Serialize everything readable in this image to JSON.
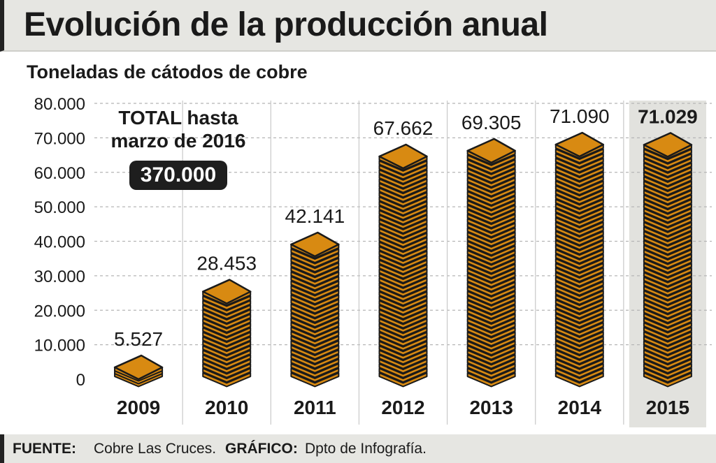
{
  "chart_data": {
    "type": "bar",
    "title": "Evolución de la producción anual",
    "subtitle": "Toneladas de cátodos de cobre",
    "categories": [
      "2009",
      "2010",
      "2011",
      "2012",
      "2013",
      "2014",
      "2015"
    ],
    "values": [
      5527,
      28453,
      42141,
      67662,
      69305,
      71090,
      71029
    ],
    "value_labels": [
      "5.527",
      "28.453",
      "42.141",
      "67.662",
      "69.305",
      "71.090",
      "71.029"
    ],
    "highlight_category": "2015",
    "ylim": [
      0,
      80000
    ],
    "yticks": [
      0,
      10000,
      20000,
      30000,
      40000,
      50000,
      60000,
      70000,
      80000
    ],
    "ytick_labels": [
      "0",
      "10.000",
      "20.000",
      "30.000",
      "40.000",
      "50.000",
      "60.000",
      "70.000",
      "80.000"
    ],
    "xlabel": "",
    "ylabel": "",
    "grid": true,
    "bar_color": "#d88a12",
    "highlight_bg": "#e2e2de"
  },
  "annotation": {
    "label": "TOTAL hasta marzo de 2016",
    "value": "370.000"
  },
  "footer": {
    "source_label": "FUENTE:",
    "source_text": "Cobre Las Cruces.",
    "graphic_label": "GRÁFICO:",
    "graphic_text": "Dpto de Infografía."
  }
}
